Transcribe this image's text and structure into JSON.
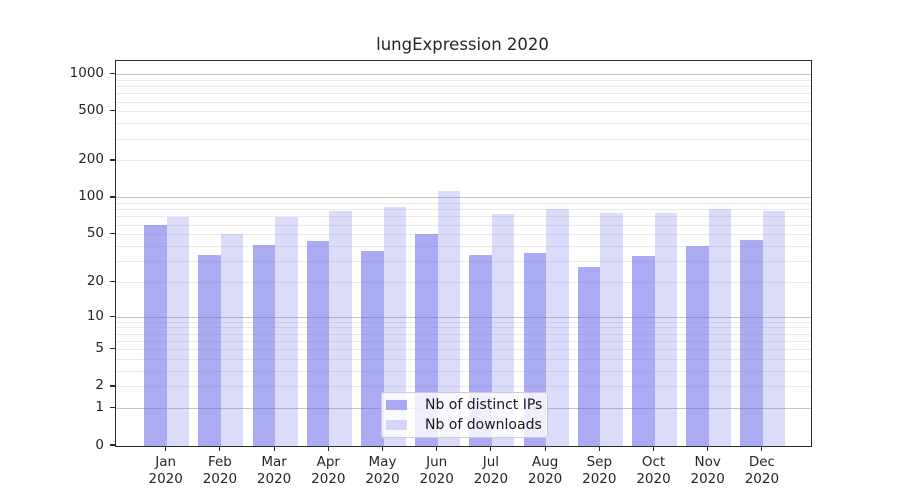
{
  "title": "lungExpression 2020",
  "chart_data": {
    "type": "bar",
    "title": "lungExpression 2020",
    "categories": [
      "Jan",
      "Feb",
      "Mar",
      "Apr",
      "May",
      "Jun",
      "Jul",
      "Aug",
      "Sep",
      "Oct",
      "Nov",
      "Dec"
    ],
    "x_year_label": "2020",
    "series": [
      {
        "name": "Nb of distinct IPs",
        "values": [
          60,
          34,
          41,
          44,
          37,
          51,
          34,
          35,
          27,
          33,
          40,
          45
        ]
      },
      {
        "name": "Nb of downloads",
        "values": [
          70,
          51,
          70,
          78,
          85,
          114,
          74,
          81,
          76,
          75,
          82,
          78
        ]
      }
    ],
    "yscale": "symlog",
    "ylim": [
      0,
      1290
    ],
    "y_ticks": [
      0,
      1,
      2,
      5,
      10,
      20,
      50,
      100,
      200,
      500,
      1000
    ],
    "y_major_gridlines": [
      1,
      10,
      100,
      1000
    ],
    "y_minor_gridlines": [
      2,
      3,
      4,
      5,
      6,
      7,
      8,
      9,
      20,
      30,
      40,
      50,
      60,
      70,
      80,
      90,
      200,
      300,
      400,
      500,
      600,
      700,
      800,
      900
    ],
    "grid": true,
    "legend_position": "lower center inside"
  },
  "legend": {
    "items": [
      {
        "label": "Nb of distinct IPs",
        "swatch": "ips"
      },
      {
        "label": "Nb of downloads",
        "swatch": "downloads"
      }
    ]
  },
  "colors": {
    "bar_distinct_ips": "rgba(102,102,235,0.55)",
    "bar_downloads": "rgba(102,102,235,0.235)",
    "grid_major": "#c4c4c4",
    "grid_minor": "#eaeaea",
    "spine": "#2b2b2b",
    "text": "#262626"
  }
}
